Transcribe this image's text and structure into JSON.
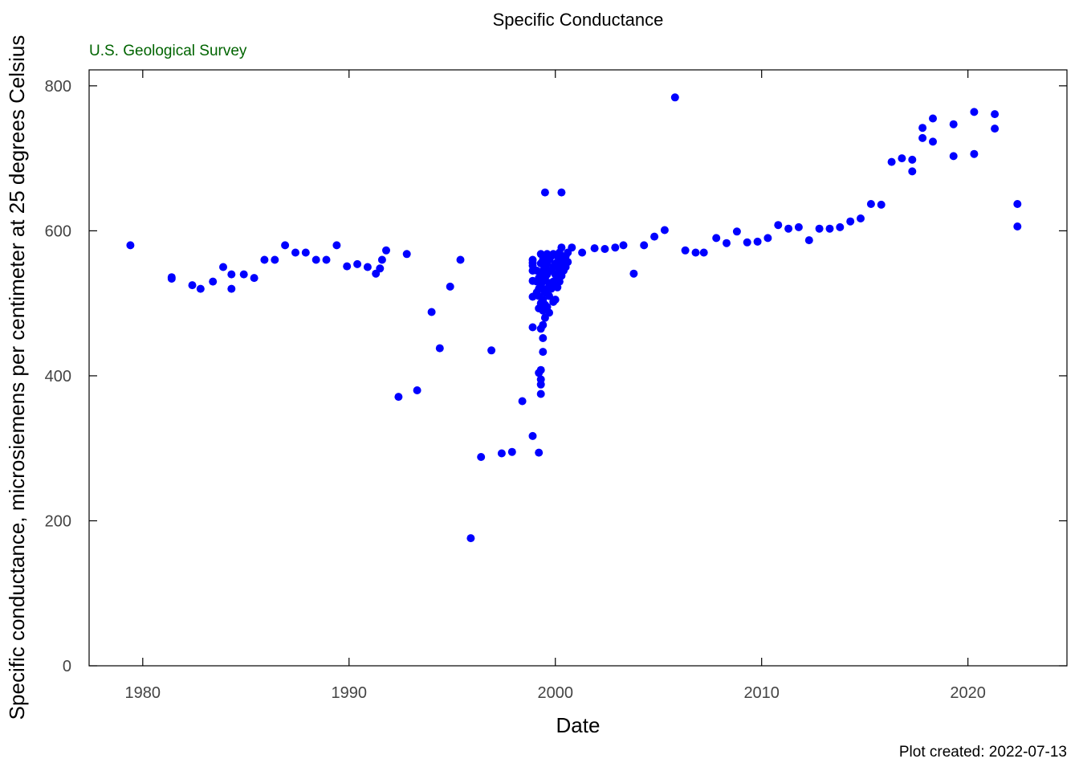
{
  "page": {
    "title": "Specific Conductance",
    "organization": "U.S. Geological Survey",
    "footer": "Plot created: 2022-07-13"
  },
  "chart_data": {
    "type": "scatter",
    "title": "Specific Conductance",
    "xlabel": "Date",
    "ylabel": "Specific conductance, microsiemens per centimeter at 25 degrees Celsius",
    "xlim": [
      1977.4,
      2024.8
    ],
    "ylim": [
      0,
      822
    ],
    "x_ticks": [
      1980,
      1990,
      2000,
      2010,
      2020
    ],
    "y_ticks": [
      0,
      200,
      400,
      600,
      800
    ],
    "marker_color": "#0000ff",
    "grid": false,
    "legend": "none",
    "points": [
      [
        1979.4,
        580
      ],
      [
        1981.4,
        536
      ],
      [
        1981.4,
        534
      ],
      [
        1982.4,
        525
      ],
      [
        1982.8,
        520
      ],
      [
        1983.4,
        530
      ],
      [
        1983.9,
        550
      ],
      [
        1984.3,
        540
      ],
      [
        1984.3,
        520
      ],
      [
        1984.9,
        540
      ],
      [
        1985.4,
        535
      ],
      [
        1985.9,
        560
      ],
      [
        1986.4,
        560
      ],
      [
        1986.9,
        580
      ],
      [
        1987.4,
        570
      ],
      [
        1987.9,
        570
      ],
      [
        1988.4,
        560
      ],
      [
        1988.9,
        560
      ],
      [
        1989.4,
        580
      ],
      [
        1989.9,
        551
      ],
      [
        1990.4,
        554
      ],
      [
        1990.9,
        550
      ],
      [
        1991.3,
        541
      ],
      [
        1991.5,
        548
      ],
      [
        1991.6,
        560
      ],
      [
        1991.8,
        573
      ],
      [
        1992.4,
        371
      ],
      [
        1992.8,
        568
      ],
      [
        1993.3,
        380
      ],
      [
        1994.0,
        488
      ],
      [
        1994.4,
        438
      ],
      [
        1994.9,
        523
      ],
      [
        1995.4,
        560
      ],
      [
        1995.9,
        176
      ],
      [
        1996.4,
        288
      ],
      [
        1996.9,
        435
      ],
      [
        1997.4,
        293
      ],
      [
        1997.9,
        295
      ],
      [
        1998.4,
        365
      ],
      [
        1998.9,
        317
      ],
      [
        1998.9,
        509
      ],
      [
        1998.9,
        531
      ],
      [
        1998.9,
        545
      ],
      [
        1998.9,
        552
      ],
      [
        1998.9,
        556
      ],
      [
        1998.9,
        560
      ],
      [
        1998.9,
        467
      ],
      [
        1999.1,
        515
      ],
      [
        1999.1,
        530
      ],
      [
        1999.1,
        545
      ],
      [
        1999.2,
        294
      ],
      [
        1999.2,
        404
      ],
      [
        1999.2,
        493
      ],
      [
        1999.2,
        510
      ],
      [
        1999.2,
        520
      ],
      [
        1999.2,
        535
      ],
      [
        1999.3,
        375
      ],
      [
        1999.3,
        388
      ],
      [
        1999.3,
        395
      ],
      [
        1999.3,
        408
      ],
      [
        1999.3,
        465
      ],
      [
        1999.3,
        500
      ],
      [
        1999.3,
        525
      ],
      [
        1999.3,
        540
      ],
      [
        1999.3,
        555
      ],
      [
        1999.3,
        568
      ],
      [
        1999.4,
        433
      ],
      [
        1999.4,
        452
      ],
      [
        1999.4,
        470
      ],
      [
        1999.4,
        490
      ],
      [
        1999.4,
        505
      ],
      [
        1999.4,
        520
      ],
      [
        1999.4,
        530
      ],
      [
        1999.4,
        545
      ],
      [
        1999.4,
        560
      ],
      [
        1999.5,
        480
      ],
      [
        1999.5,
        498
      ],
      [
        1999.5,
        515
      ],
      [
        1999.5,
        535
      ],
      [
        1999.5,
        550
      ],
      [
        1999.5,
        565
      ],
      [
        1999.5,
        653
      ],
      [
        1999.6,
        495
      ],
      [
        1999.6,
        520
      ],
      [
        1999.6,
        540
      ],
      [
        1999.6,
        555
      ],
      [
        1999.6,
        568
      ],
      [
        1999.7,
        487
      ],
      [
        1999.7,
        510
      ],
      [
        1999.7,
        528
      ],
      [
        1999.7,
        545
      ],
      [
        1999.7,
        560
      ],
      [
        1999.8,
        520
      ],
      [
        1999.8,
        545
      ],
      [
        1999.8,
        565
      ],
      [
        1999.9,
        502
      ],
      [
        1999.9,
        530
      ],
      [
        1999.9,
        550
      ],
      [
        1999.9,
        568
      ],
      [
        2000.0,
        505
      ],
      [
        2000.0,
        525
      ],
      [
        2000.0,
        540
      ],
      [
        2000.0,
        555
      ],
      [
        2000.1,
        522
      ],
      [
        2000.1,
        535
      ],
      [
        2000.1,
        550
      ],
      [
        2000.1,
        565
      ],
      [
        2000.2,
        530
      ],
      [
        2000.2,
        545
      ],
      [
        2000.2,
        558
      ],
      [
        2000.2,
        570
      ],
      [
        2000.3,
        538
      ],
      [
        2000.3,
        552
      ],
      [
        2000.3,
        565
      ],
      [
        2000.3,
        577
      ],
      [
        2000.3,
        653
      ],
      [
        2000.4,
        545
      ],
      [
        2000.4,
        560
      ],
      [
        2000.5,
        550
      ],
      [
        2000.5,
        565
      ],
      [
        2000.6,
        557
      ],
      [
        2000.6,
        570
      ],
      [
        2000.8,
        577
      ],
      [
        2001.3,
        570
      ],
      [
        2001.9,
        576
      ],
      [
        2002.4,
        575
      ],
      [
        2002.9,
        577
      ],
      [
        2003.3,
        580
      ],
      [
        2003.8,
        541
      ],
      [
        2004.3,
        580
      ],
      [
        2004.8,
        592
      ],
      [
        2005.3,
        601
      ],
      [
        2005.8,
        784
      ],
      [
        2006.3,
        573
      ],
      [
        2006.8,
        570
      ],
      [
        2007.2,
        570
      ],
      [
        2007.8,
        590
      ],
      [
        2008.3,
        583
      ],
      [
        2008.8,
        599
      ],
      [
        2009.3,
        584
      ],
      [
        2009.8,
        585
      ],
      [
        2010.3,
        590
      ],
      [
        2010.8,
        608
      ],
      [
        2011.3,
        603
      ],
      [
        2011.8,
        605
      ],
      [
        2012.3,
        587
      ],
      [
        2012.8,
        603
      ],
      [
        2013.3,
        603
      ],
      [
        2013.8,
        605
      ],
      [
        2014.3,
        613
      ],
      [
        2014.8,
        617
      ],
      [
        2015.3,
        637
      ],
      [
        2015.8,
        636
      ],
      [
        2016.3,
        695
      ],
      [
        2016.8,
        700
      ],
      [
        2017.3,
        698
      ],
      [
        2017.3,
        682
      ],
      [
        2017.8,
        742
      ],
      [
        2017.8,
        728
      ],
      [
        2018.3,
        755
      ],
      [
        2018.3,
        723
      ],
      [
        2019.3,
        747
      ],
      [
        2019.3,
        703
      ],
      [
        2020.3,
        764
      ],
      [
        2020.3,
        706
      ],
      [
        2021.3,
        761
      ],
      [
        2021.3,
        741
      ],
      [
        2022.4,
        637
      ],
      [
        2022.4,
        606
      ]
    ]
  }
}
